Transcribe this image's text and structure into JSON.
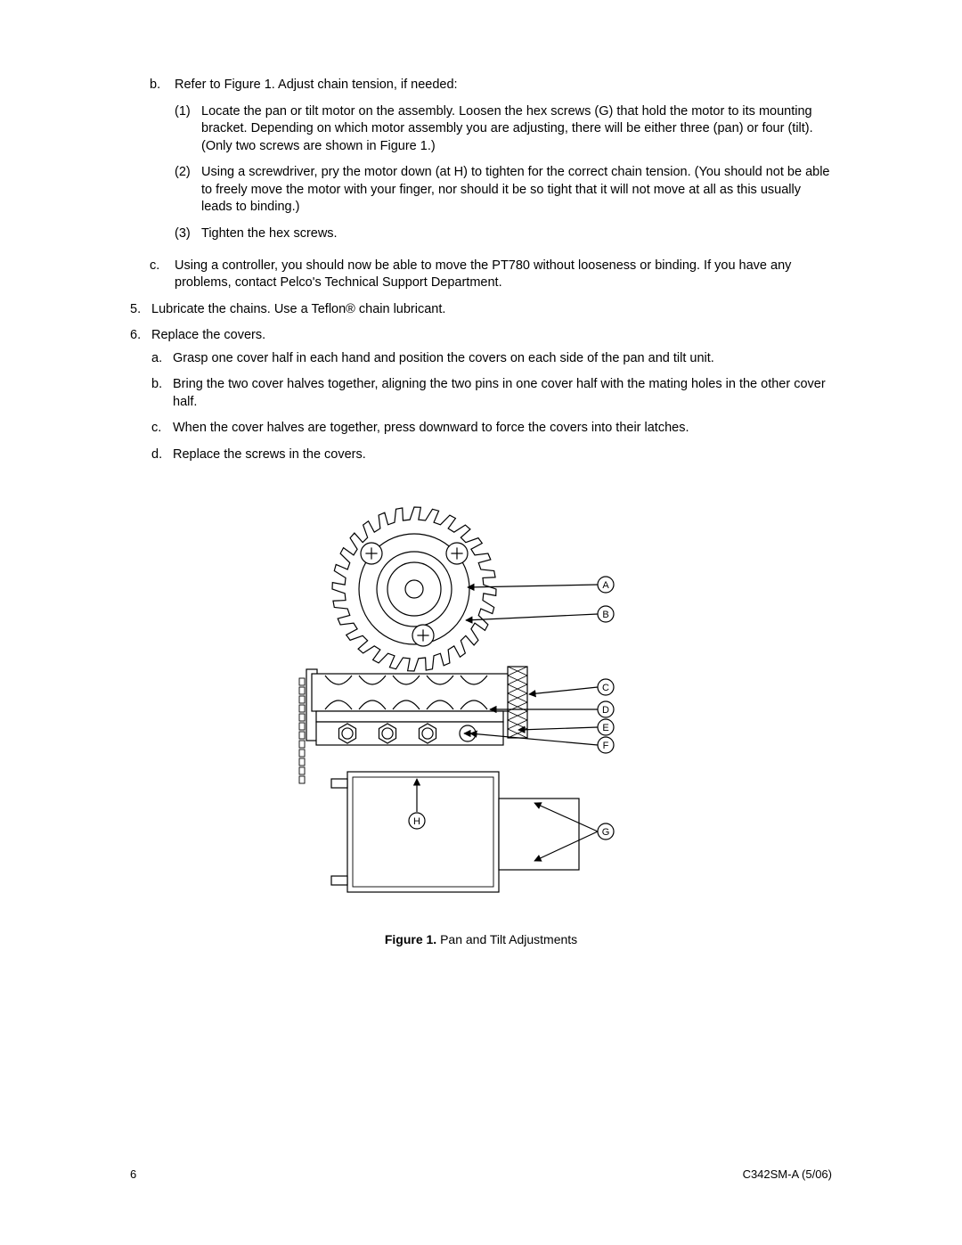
{
  "list": {
    "b_intro": "Refer to Figure 1. Adjust chain tension, if needed:",
    "b1": "Locate the pan or tilt motor on the assembly. Loosen the hex screws (G) that hold the motor to its mounting bracket. Depending on which motor assembly you are adjusting, there will be either three (pan) or four (tilt). (Only two screws are shown in Figure 1.)",
    "b2": "Using a screwdriver, pry the motor down (at H) to tighten for the correct chain tension. (You should not be able to freely move the motor with your finger, nor should it be so tight that it will not move at all as this usually leads to binding.)",
    "b3": "Tighten the hex screws.",
    "c": "Using a controller, you should now be able to move the PT780 without looseness or binding. If you have any problems, contact Pelco's Technical Support Department.",
    "n5": "Lubricate the chains. Use a Teflon® chain lubricant.",
    "n6": "Replace the covers.",
    "n6a": "Grasp one cover half in each hand and position the covers on each side of the pan and tilt unit.",
    "n6b": "Bring the two cover halves together, aligning the two pins in one cover half with the mating holes in the other cover half.",
    "n6c": "When the cover halves are together, press downward to force the covers into their latches.",
    "n6d": "Replace the screws in the covers."
  },
  "markers": {
    "b": "b.",
    "c": "c.",
    "p1": "(1)",
    "p2": "(2)",
    "p3": "(3)",
    "n5": "5.",
    "n6": "6.",
    "a": "a.",
    "bb": "b.",
    "cc": "c.",
    "dd": "d."
  },
  "figure": {
    "caption_bold": "Figure 1.",
    "caption_rest": "  Pan and Tilt Adjustments",
    "labels": {
      "A": "A",
      "B": "B",
      "C": "C",
      "D": "D",
      "E": "E",
      "F": "F",
      "G": "G",
      "H": "H"
    },
    "stroke": "#000000",
    "fill": "#ffffff",
    "stroke_width": 1.2
  },
  "footer": {
    "page": "6",
    "doc": "C342SM-A (5/06)"
  }
}
